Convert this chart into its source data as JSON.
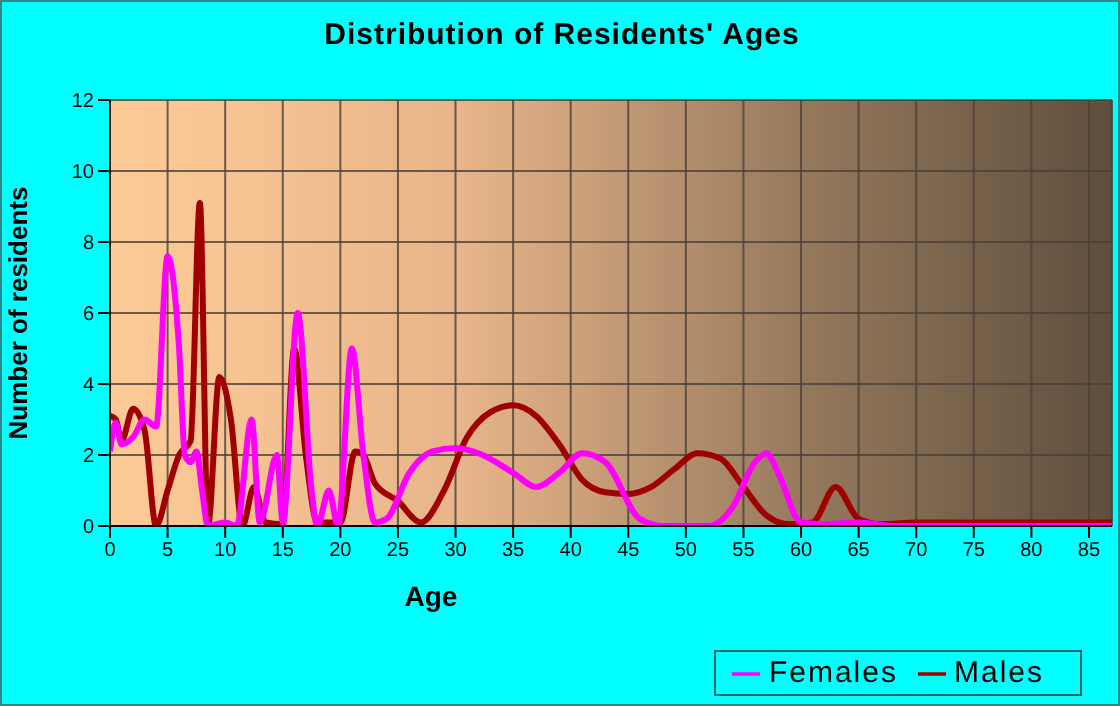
{
  "chart_data": {
    "type": "line",
    "title": "Distribution of Residents' Ages",
    "xlabel": "Age",
    "ylabel": "Number of residents",
    "xlim": [
      0,
      87
    ],
    "xticks": [
      0,
      5,
      10,
      15,
      20,
      25,
      30,
      35,
      40,
      45,
      50,
      55,
      60,
      65,
      70,
      75,
      80,
      85
    ],
    "ylim": [
      0,
      12
    ],
    "yticks": [
      0,
      2,
      4,
      6,
      8,
      10,
      12
    ],
    "grid": true,
    "legend": "bottom right",
    "marker": "none",
    "line_style": "solid",
    "series": [
      {
        "name": "Males",
        "color": "#a00000",
        "x": [
          0,
          0.5,
          1,
          2,
          3,
          4,
          5,
          6,
          7,
          7.8,
          8.5,
          9.5,
          10.5,
          11.5,
          12.5,
          13.5,
          15,
          16,
          17,
          18,
          20,
          21.3,
          22,
          23,
          25,
          27,
          29,
          31,
          33,
          35,
          37,
          39,
          41,
          43,
          45,
          47,
          49,
          51,
          53,
          55,
          57,
          59,
          61,
          63,
          65,
          67,
          70,
          87
        ],
        "values": [
          3.1,
          3.0,
          2.4,
          3.3,
          2.7,
          0,
          1.0,
          2.0,
          2.4,
          9.1,
          0,
          4.2,
          3,
          0,
          1.1,
          0.1,
          0.05,
          5.0,
          2,
          0.1,
          0.1,
          2.1,
          2,
          1.2,
          0.7,
          0.1,
          1.0,
          2.5,
          3.2,
          3.4,
          3.1,
          2.3,
          1.3,
          0.95,
          0.9,
          1.1,
          1.6,
          2.05,
          1.9,
          1.1,
          0.3,
          0.05,
          0.1,
          1.1,
          0.2,
          0.05,
          0.1,
          0.1
        ]
      },
      {
        "name": "Females",
        "color": "#ff00ff",
        "x": [
          0,
          0.5,
          1,
          2,
          3,
          4,
          5,
          6,
          6.5,
          7,
          7.5,
          8,
          8.5,
          10,
          11,
          12.3,
          13,
          14.5,
          15,
          16.3,
          17.5,
          18,
          19,
          19.8,
          21,
          22,
          23,
          24,
          26,
          28,
          30,
          32,
          35,
          37,
          39,
          41,
          43,
          46,
          48,
          52,
          54,
          56,
          57,
          58,
          60,
          62,
          65,
          68,
          87
        ],
        "values": [
          2.1,
          2.9,
          2.3,
          2.5,
          3.0,
          2.8,
          7.6,
          5,
          2,
          1.8,
          2.1,
          1,
          0,
          0.1,
          0,
          3.0,
          0.1,
          2.0,
          0.1,
          6.0,
          1,
          0,
          1.0,
          0,
          5.0,
          2,
          0.1,
          0.2,
          1.5,
          2.1,
          2.2,
          2.05,
          1.5,
          1.1,
          1.5,
          2.05,
          1.8,
          0.2,
          0,
          0,
          0.5,
          1.8,
          2.05,
          1.5,
          0.1,
          0.05,
          0.1,
          0,
          0
        ]
      }
    ]
  }
}
